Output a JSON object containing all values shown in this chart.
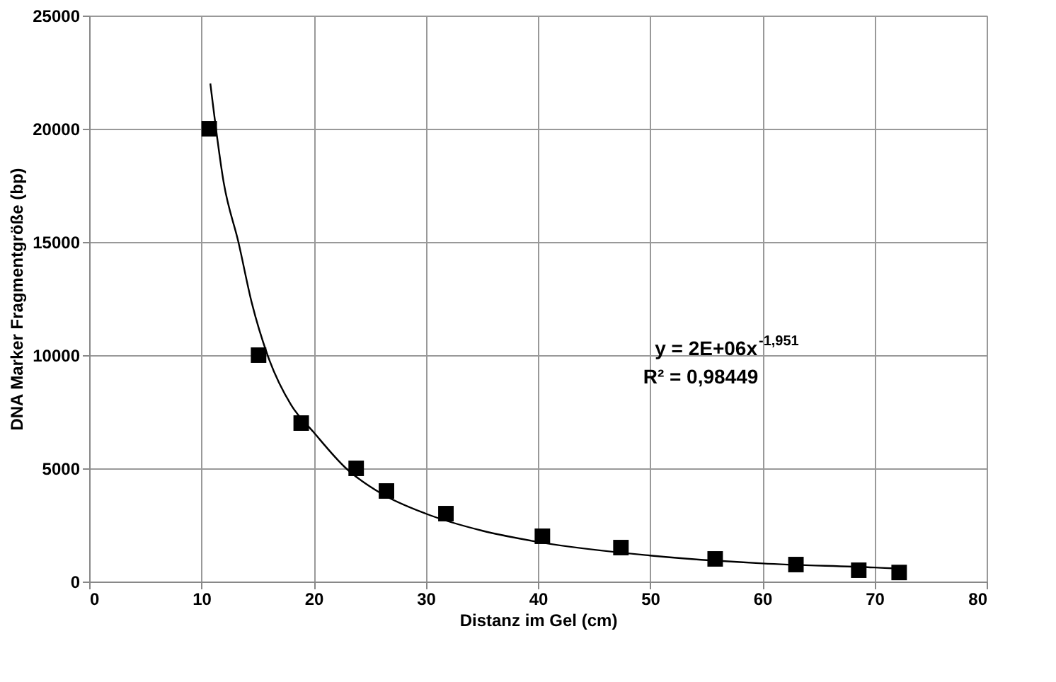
{
  "chart_data": {
    "type": "scatter",
    "xlabel": "Distanz im Gel (cm)",
    "ylabel": "DNA Marker Fragmentgröße (bp)",
    "xlim": [
      0,
      80
    ],
    "xticks": [
      0,
      10,
      20,
      30,
      40,
      50,
      60,
      70,
      80
    ],
    "ylim": [
      0,
      25000
    ],
    "yticks": [
      0,
      5000,
      10000,
      15000,
      20000,
      25000
    ],
    "grid": true,
    "marker": "square",
    "series": [
      {
        "color": "#000000",
        "x": [
          10.7,
          15.1,
          18.9,
          23.8,
          26.5,
          31.8,
          40.4,
          47.4,
          55.8,
          63.0,
          68.6,
          72.2
        ],
        "values": [
          20000,
          10000,
          7000,
          5000,
          4000,
          3000,
          2000,
          1500,
          1000,
          750,
          500,
          400
        ]
      },
      {
        "type": "line",
        "color": "#000000",
        "marker": "none",
        "x": [
          10.8,
          12,
          13.3,
          14.5,
          15.9,
          18,
          20,
          22.9,
          26,
          30,
          35,
          40,
          50,
          60,
          70,
          72.2
        ],
        "values": [
          22000,
          17600,
          15000,
          12300,
          10000,
          7800,
          6600,
          5000,
          3900,
          3000,
          2250,
          1750,
          1150,
          800,
          620,
          570
        ]
      }
    ],
    "annotations": [
      "y = 2E+06x$^{-1,951}$",
      "R² = 0,98449"
    ]
  }
}
